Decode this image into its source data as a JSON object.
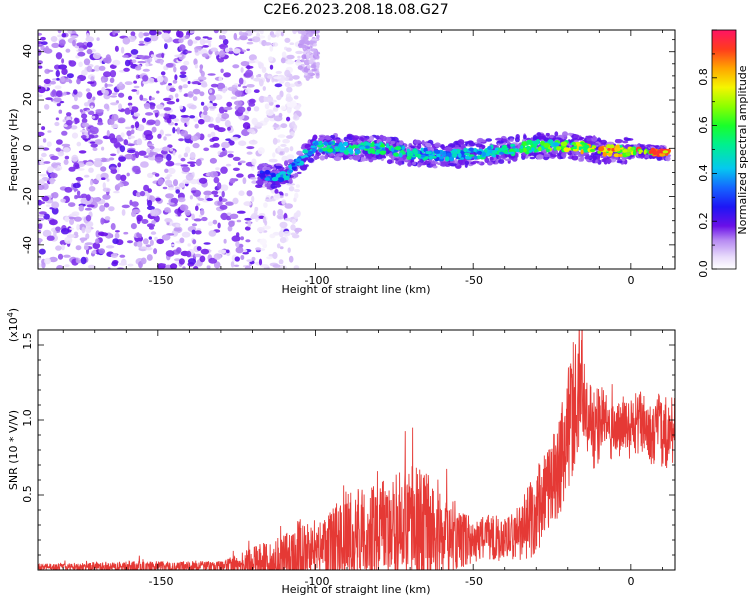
{
  "chart_data": [
    {
      "type": "heatmap",
      "title": "C2E6.2023.208.18.08.G27",
      "xlabel": "Height of straight line (km)",
      "ylabel": "Frequency (Hz)",
      "xlim": [
        -188,
        14
      ],
      "ylim": [
        -50,
        49
      ],
      "xticks": [
        "-150",
        "-100",
        "-50",
        "0"
      ],
      "yticks": [
        "-40",
        "-20",
        "0",
        "20",
        "40"
      ],
      "colorbar": {
        "label": "Normalized spectral amplitude",
        "range": [
          0,
          1
        ],
        "ticks": [
          "0.0",
          "0.2",
          "0.4",
          "0.6",
          "0.8"
        ]
      },
      "noise_region": {
        "x_range": [
          -188,
          -105
        ],
        "freq_range": [
          -50,
          49
        ],
        "amplitude": 0.15
      },
      "signal_track": {
        "x": [
          -118,
          -110,
          -105,
          -100,
          -90,
          -80,
          -70,
          -60,
          -50,
          -40,
          -30,
          -20,
          -10,
          0,
          12
        ],
        "freq": [
          -11,
          -12,
          -5,
          1,
          0,
          0,
          -2,
          -3,
          -2,
          -1,
          1,
          1,
          -1,
          -1,
          -2
        ],
        "peak_amplitude": [
          0.35,
          0.45,
          0.4,
          0.5,
          0.55,
          0.55,
          0.5,
          0.45,
          0.5,
          0.55,
          0.6,
          0.7,
          0.85,
          0.9,
          0.9
        ]
      }
    },
    {
      "type": "line",
      "xlabel": "Height of straight line (km)",
      "ylabel": "SNR (10 * V/V)",
      "ylabel_exponent": "(x10",
      "ylabel_exponent_power": "4",
      "ylabel_exponent_close": ")",
      "xlim": [
        -188,
        14
      ],
      "ylim": [
        0,
        1.6
      ],
      "xticks": [
        "-150",
        "-100",
        "-50",
        "0"
      ],
      "yticks": [
        "0.5",
        "1.0",
        "1.5"
      ],
      "series": [
        {
          "color": "#e53935",
          "x": [
            -188,
            -160,
            -130,
            -115,
            -110,
            -105,
            -100,
            -95,
            -90,
            -85,
            -80,
            -75,
            -70,
            -65,
            -60,
            -55,
            -50,
            -45,
            -40,
            -35,
            -30,
            -27,
            -24,
            -21,
            -18,
            -15,
            -12,
            -9,
            -6,
            -3,
            0,
            3,
            6,
            9,
            12,
            14
          ],
          "y": [
            0.02,
            0.02,
            0.02,
            0.05,
            0.08,
            0.1,
            0.12,
            0.18,
            0.24,
            0.26,
            0.24,
            0.28,
            0.3,
            0.26,
            0.22,
            0.2,
            0.2,
            0.22,
            0.2,
            0.26,
            0.38,
            0.55,
            0.62,
            0.8,
            1.1,
            1.25,
            0.9,
            1.0,
            0.9,
            0.95,
            0.9,
            1.0,
            0.9,
            0.95,
            0.9,
            0.95
          ],
          "peak_amplitude": [
            0.02,
            0.04,
            0.04,
            0.15,
            0.15,
            0.25,
            0.15,
            0.25,
            0.3,
            0.3,
            0.32,
            0.4,
            0.4,
            0.4,
            0.28,
            0.2,
            0.15,
            0.15,
            0.15,
            0.2,
            0.3,
            0.3,
            0.3,
            0.4,
            0.45,
            0.35,
            0.3,
            0.25,
            0.2,
            0.2,
            0.2,
            0.2,
            0.2,
            0.25,
            0.25,
            0.2
          ]
        }
      ]
    }
  ]
}
